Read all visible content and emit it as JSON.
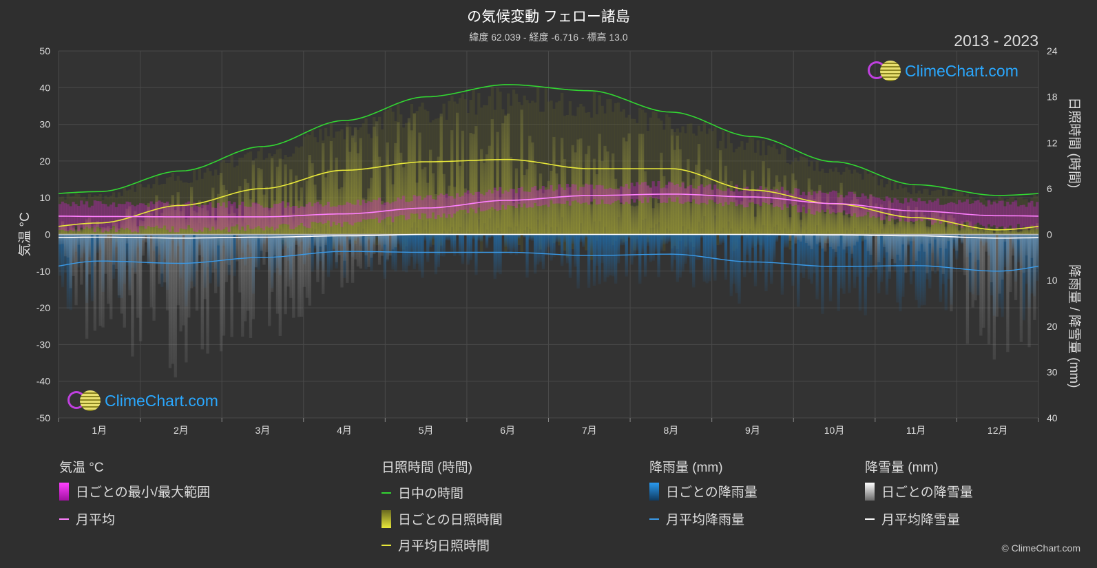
{
  "header": {
    "title": "の気候変動 フェロー諸島",
    "subtitle": "緯度 62.039 - 経度 -6.716 - 標高 13.0",
    "period": "2013 - 2023"
  },
  "brand": {
    "name": "ClimeChart.com",
    "copyright": "© ClimeChart.com"
  },
  "colors": {
    "daylight": "#32d732",
    "sunshine_avg": "#e8e83a",
    "sunshine_daily": "#b8b83a",
    "temp_range": "#d020d0",
    "temp_avg": "#ff80ff",
    "rain_daily": "#1f6fb0",
    "rain_avg": "#3a9ae8",
    "snow_daily": "#9a9a9a",
    "snow_avg": "#ffffff"
  },
  "chart_data": {
    "type": "line",
    "categories": [
      "1月",
      "2月",
      "3月",
      "4月",
      "5月",
      "6月",
      "7月",
      "8月",
      "9月",
      "10月",
      "11月",
      "12月"
    ],
    "axes": {
      "left": {
        "label": "気温 °C",
        "ticks": [
          "50",
          "40",
          "30",
          "20",
          "10",
          "0",
          "-10",
          "-20",
          "-30",
          "-40",
          "-50"
        ],
        "range": [
          -50,
          50
        ]
      },
      "right_top": {
        "label": "日照時間 (時間)",
        "ticks": [
          "24",
          "18",
          "12",
          "6",
          "0"
        ],
        "range": [
          0,
          24
        ]
      },
      "right_bottom": {
        "label": "降雨量 / 降雪量 (mm)",
        "ticks": [
          "10",
          "20",
          "30",
          "40"
        ],
        "range": [
          0,
          40
        ]
      }
    },
    "grid": true,
    "series": [
      {
        "name": "日中の時間",
        "axis": "sunshine",
        "values": [
          5.6,
          8.3,
          11.5,
          14.9,
          18.0,
          19.6,
          18.8,
          16.0,
          12.8,
          9.5,
          6.5,
          5.1
        ]
      },
      {
        "name": "月平均日照時間",
        "axis": "sunshine",
        "values": [
          1.5,
          3.8,
          6.0,
          8.4,
          9.5,
          9.8,
          8.6,
          8.6,
          5.8,
          4.0,
          2.2,
          0.6
        ]
      },
      {
        "name": "月平均",
        "axis": "temperature",
        "values": [
          4.9,
          4.8,
          4.8,
          5.6,
          7.2,
          9.3,
          10.6,
          11.0,
          10.2,
          8.4,
          6.4,
          5.1
        ]
      },
      {
        "name": "月平均降雨量",
        "axis": "precipitation",
        "values": [
          5.8,
          6.3,
          5.0,
          3.7,
          3.9,
          3.9,
          4.6,
          4.3,
          6.0,
          7.0,
          6.8,
          8.0
        ]
      },
      {
        "name": "月平均降雪量",
        "axis": "precipitation",
        "values": [
          0.6,
          0.8,
          0.6,
          0.3,
          0.0,
          0.0,
          0.0,
          0.0,
          0.0,
          0.1,
          0.3,
          0.8
        ]
      }
    ],
    "temperature_range": {
      "name": "日ごとの最小/最大範囲",
      "min": [
        1.5,
        1.5,
        1.8,
        3.0,
        5.0,
        7.5,
        9.0,
        9.4,
        8.3,
        6.0,
        3.8,
        2.0
      ],
      "max": [
        8.3,
        8.3,
        8.0,
        8.5,
        10.0,
        12.0,
        13.0,
        13.6,
        12.5,
        11.0,
        9.0,
        8.5
      ]
    }
  },
  "legend": {
    "groups": [
      {
        "title": "気温 °C",
        "items": [
          "日ごとの最小/最大範囲",
          "月平均"
        ]
      },
      {
        "title": "日照時間 (時間)",
        "items": [
          "日中の時間",
          "日ごとの日照時間",
          "月平均日照時間"
        ]
      },
      {
        "title": "降雨量 (mm)",
        "items": [
          "日ごとの降雨量",
          "月平均降雨量"
        ]
      },
      {
        "title": "降雪量 (mm)",
        "items": [
          "日ごとの降雪量",
          "月平均降雪量"
        ]
      }
    ]
  }
}
